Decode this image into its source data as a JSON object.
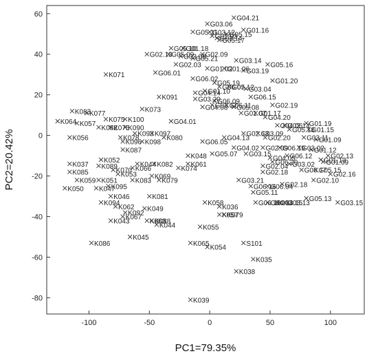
{
  "chart_data": {
    "type": "scatter",
    "xlabel": "PC1=79.35%",
    "ylabel": "PC2=20.42%",
    "xlim": [
      -135,
      128
    ],
    "ylim": [
      -88,
      64
    ],
    "xticks": [
      -100,
      -50,
      0,
      50,
      100
    ],
    "yticks": [
      60,
      40,
      20,
      0,
      -20,
      -40,
      -60,
      -80
    ],
    "grid": false,
    "marker": "x",
    "points": [
      {
        "label": "G04.21",
        "x": 20,
        "y": 58
      },
      {
        "label": "G03.06",
        "x": -2,
        "y": 55
      },
      {
        "label": "G01.16",
        "x": 28,
        "y": 52
      },
      {
        "label": "G05.11",
        "x": -14,
        "y": 51
      },
      {
        "label": "G03.12",
        "x": 0,
        "y": 51
      },
      {
        "label": "G05.15",
        "x": 14,
        "y": 50
      },
      {
        "label": "G01.03",
        "x": 2,
        "y": 49
      },
      {
        "label": "G03.14",
        "x": 6,
        "y": 48
      },
      {
        "label": "G05.17",
        "x": 8,
        "y": 47
      },
      {
        "label": "G05.10",
        "x": -32,
        "y": 43
      },
      {
        "label": "G01.18",
        "x": -22,
        "y": 43
      },
      {
        "label": "G05.09",
        "x": -34,
        "y": 40
      },
      {
        "label": "G02.09",
        "x": -6,
        "y": 40
      },
      {
        "label": "G02.13",
        "x": -52,
        "y": 40
      },
      {
        "label": "G03.08",
        "x": -24,
        "y": 39
      },
      {
        "label": "G05.21",
        "x": -14,
        "y": 38
      },
      {
        "label": "G03.14",
        "x": 22,
        "y": 37
      },
      {
        "label": "G05.16",
        "x": 48,
        "y": 35
      },
      {
        "label": "G02.03",
        "x": -28,
        "y": 35
      },
      {
        "label": "G01.06",
        "x": 12,
        "y": 33
      },
      {
        "label": "G01.02",
        "x": -2,
        "y": 33
      },
      {
        "label": "G01.20",
        "x": 52,
        "y": 27
      },
      {
        "label": "G03.19",
        "x": 28,
        "y": 32
      },
      {
        "label": "G06.01",
        "x": -45,
        "y": 31
      },
      {
        "label": "G06.02",
        "x": -14,
        "y": 28
      },
      {
        "label": "G05.19",
        "x": 4,
        "y": 26
      },
      {
        "label": "G03.04",
        "x": 30,
        "y": 23
      },
      {
        "label": "G05.12",
        "x": 16,
        "y": 24
      },
      {
        "label": "G06.07",
        "x": 8,
        "y": 24
      },
      {
        "label": "G01.10",
        "x": -4,
        "y": 22
      },
      {
        "label": "G04.14",
        "x": -12,
        "y": 21
      },
      {
        "label": "G06.15",
        "x": 34,
        "y": 19
      },
      {
        "label": "G03.20",
        "x": -12,
        "y": 18
      },
      {
        "label": "G02.19",
        "x": 52,
        "y": 15
      },
      {
        "label": "G06.09",
        "x": 4,
        "y": 17
      },
      {
        "label": "G04.08",
        "x": -6,
        "y": 14
      },
      {
        "label": "G03.17",
        "x": 2,
        "y": 15
      },
      {
        "label": "G06.11",
        "x": 14,
        "y": 15
      },
      {
        "label": "G05.08",
        "x": 20,
        "y": 14
      },
      {
        "label": "G01.07",
        "x": 26,
        "y": 11
      },
      {
        "label": "G01.17",
        "x": 38,
        "y": 11
      },
      {
        "label": "G04.20",
        "x": 46,
        "y": 9
      },
      {
        "label": "G01.19",
        "x": 80,
        "y": 6
      },
      {
        "label": "G04.06",
        "x": 56,
        "y": 5
      },
      {
        "label": "G02.14",
        "x": 62,
        "y": 5
      },
      {
        "label": "G05.18",
        "x": 66,
        "y": 3
      },
      {
        "label": "G01.15",
        "x": 82,
        "y": 3
      },
      {
        "label": "G04.01",
        "x": -32,
        "y": 7
      },
      {
        "label": "G02.13",
        "x": 28,
        "y": 1
      },
      {
        "label": "G03.09",
        "x": 40,
        "y": 1
      },
      {
        "label": "G06.05",
        "x": -6,
        "y": -3
      },
      {
        "label": "G04.13",
        "x": 12,
        "y": -1
      },
      {
        "label": "G03.11",
        "x": 78,
        "y": -1
      },
      {
        "label": "G02.20",
        "x": 46,
        "y": -1
      },
      {
        "label": "G01.09",
        "x": 88,
        "y": -2
      },
      {
        "label": "G04.02",
        "x": 20,
        "y": -6
      },
      {
        "label": "G05.07",
        "x": 2,
        "y": -9
      },
      {
        "label": "G02.09",
        "x": 44,
        "y": -6
      },
      {
        "label": "G06.19",
        "x": 58,
        "y": -6
      },
      {
        "label": "G03.02",
        "x": 74,
        "y": -6
      },
      {
        "label": "G01.12",
        "x": 84,
        "y": -7
      },
      {
        "label": "G03.15",
        "x": 30,
        "y": -9
      },
      {
        "label": "G04.05",
        "x": 50,
        "y": -11
      },
      {
        "label": "G06.12",
        "x": 64,
        "y": -10
      },
      {
        "label": "G02.13",
        "x": 98,
        "y": -10
      },
      {
        "label": "G01.13",
        "x": 92,
        "y": -12
      },
      {
        "label": "G01.09",
        "x": 94,
        "y": -13
      },
      {
        "label": "G06.20",
        "x": 52,
        "y": -13
      },
      {
        "label": "G03.02",
        "x": 66,
        "y": -14
      },
      {
        "label": "G02.04",
        "x": 44,
        "y": -15
      },
      {
        "label": "G05.15",
        "x": 88,
        "y": -17
      },
      {
        "label": "G06.17",
        "x": 76,
        "y": -17
      },
      {
        "label": "G02.16",
        "x": 100,
        "y": -19
      },
      {
        "label": "G02.10",
        "x": 86,
        "y": -22
      },
      {
        "label": "G03.21",
        "x": 24,
        "y": -22
      },
      {
        "label": "G06.16",
        "x": 34,
        "y": -25
      },
      {
        "label": "G06.04",
        "x": 48,
        "y": -25
      },
      {
        "label": "G02.18",
        "x": 60,
        "y": -24
      },
      {
        "label": "G05.11",
        "x": 36,
        "y": -28
      },
      {
        "label": "G05.13",
        "x": 80,
        "y": -31
      },
      {
        "label": "G03.15",
        "x": 106,
        "y": -33
      },
      {
        "label": "G06.18",
        "x": 38,
        "y": -33
      },
      {
        "label": "G04.13",
        "x": 48,
        "y": -33
      },
      {
        "label": "G04.15",
        "x": 56,
        "y": -33
      },
      {
        "label": "G03.13",
        "x": 62,
        "y": -33
      },
      {
        "label": "G02.18",
        "x": 44,
        "y": -18
      },
      {
        "label": "K071",
        "x": -86,
        "y": 30
      },
      {
        "label": "K091",
        "x": -42,
        "y": 19
      },
      {
        "label": "K083",
        "x": -114,
        "y": 12
      },
      {
        "label": "K077",
        "x": -102,
        "y": 11
      },
      {
        "label": "K073",
        "x": -56,
        "y": 13
      },
      {
        "label": "K064",
        "x": -126,
        "y": 7
      },
      {
        "label": "K057",
        "x": -110,
        "y": 6
      },
      {
        "label": "K075",
        "x": -86,
        "y": 8
      },
      {
        "label": "K100",
        "x": -70,
        "y": 8
      },
      {
        "label": "K082",
        "x": -92,
        "y": 4
      },
      {
        "label": "K075",
        "x": -82,
        "y": 4
      },
      {
        "label": "K090",
        "x": -70,
        "y": 4
      },
      {
        "label": "K097",
        "x": -48,
        "y": 1
      },
      {
        "label": "K093",
        "x": -62,
        "y": 1
      },
      {
        "label": "K080",
        "x": -38,
        "y": -1
      },
      {
        "label": "K056",
        "x": -116,
        "y": -1
      },
      {
        "label": "K078",
        "x": -74,
        "y": -1
      },
      {
        "label": "K096",
        "x": -72,
        "y": -3
      },
      {
        "label": "K098",
        "x": -56,
        "y": -3
      },
      {
        "label": "K087",
        "x": -72,
        "y": -7
      },
      {
        "label": "K048",
        "x": -18,
        "y": -10
      },
      {
        "label": "K052",
        "x": -90,
        "y": -12
      },
      {
        "label": "K037",
        "x": -116,
        "y": -14
      },
      {
        "label": "K089",
        "x": -92,
        "y": -15
      },
      {
        "label": "K044",
        "x": -60,
        "y": -14
      },
      {
        "label": "K082",
        "x": -46,
        "y": -14
      },
      {
        "label": "K061",
        "x": -18,
        "y": -14
      },
      {
        "label": "K066",
        "x": -64,
        "y": -16
      },
      {
        "label": "K074",
        "x": -26,
        "y": -16
      },
      {
        "label": "K085",
        "x": -116,
        "y": -18
      },
      {
        "label": "K070",
        "x": -80,
        "y": -17
      },
      {
        "label": "K053",
        "x": -76,
        "y": -19
      },
      {
        "label": "K059",
        "x": -110,
        "y": -22
      },
      {
        "label": "K051",
        "x": -92,
        "y": -22
      },
      {
        "label": "K083",
        "x": -64,
        "y": -22
      },
      {
        "label": "K079",
        "x": -42,
        "y": -22
      },
      {
        "label": "K069",
        "x": -48,
        "y": -20
      },
      {
        "label": "K050",
        "x": -120,
        "y": -26
      },
      {
        "label": "K095",
        "x": -84,
        "y": -25
      },
      {
        "label": "K047",
        "x": -94,
        "y": -26
      },
      {
        "label": "K046",
        "x": -82,
        "y": -30
      },
      {
        "label": "K081",
        "x": -50,
        "y": -30
      },
      {
        "label": "K094",
        "x": -90,
        "y": -33
      },
      {
        "label": "K062",
        "x": -78,
        "y": -35
      },
      {
        "label": "K049",
        "x": -54,
        "y": -36
      },
      {
        "label": "K092",
        "x": -70,
        "y": -38
      },
      {
        "label": "K067",
        "x": -72,
        "y": -40
      },
      {
        "label": "K058",
        "x": -4,
        "y": -33
      },
      {
        "label": "K036",
        "x": 8,
        "y": -35
      },
      {
        "label": "K057",
        "x": 8,
        "y": -39
      },
      {
        "label": "K079",
        "x": 12,
        "y": -39
      },
      {
        "label": "K043",
        "x": -82,
        "y": -42
      },
      {
        "label": "K063",
        "x": -52,
        "y": -42
      },
      {
        "label": "K088",
        "x": -48,
        "y": -42
      },
      {
        "label": "K044",
        "x": -44,
        "y": -44
      },
      {
        "label": "K055",
        "x": -8,
        "y": -45
      },
      {
        "label": "K045",
        "x": -66,
        "y": -50
      },
      {
        "label": "K086",
        "x": -98,
        "y": -53
      },
      {
        "label": "K065",
        "x": -16,
        "y": -53
      },
      {
        "label": "K054",
        "x": -2,
        "y": -55
      },
      {
        "label": "S101",
        "x": 28,
        "y": -53
      },
      {
        "label": "K035",
        "x": 36,
        "y": -61
      },
      {
        "label": "K038",
        "x": 22,
        "y": -67
      },
      {
        "label": "K039",
        "x": -16,
        "y": -81
      }
    ]
  }
}
